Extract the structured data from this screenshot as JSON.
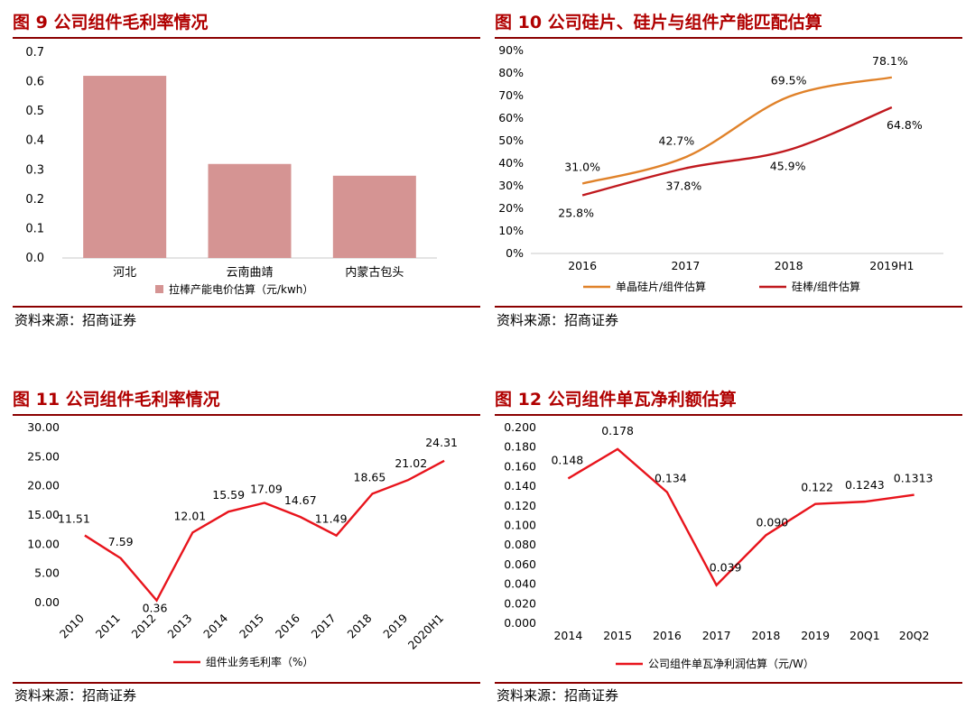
{
  "figures": [
    {
      "title": "图 9  公司组件毛利率情况",
      "source": "资料来源：招商证券",
      "chart_data": {
        "type": "bar",
        "categories": [
          "河北",
          "云南曲靖",
          "内蒙古包头"
        ],
        "series": [
          {
            "name": "拉棒产能电价估算（元/kwh）",
            "values": [
              0.62,
              0.32,
              0.28
            ],
            "color": "#d59493"
          }
        ],
        "ylim": [
          0,
          0.7
        ],
        "yticks": [
          "0.0",
          "0.1",
          "0.2",
          "0.3",
          "0.4",
          "0.5",
          "0.6",
          "0.7"
        ],
        "grid": false,
        "legend": "bottom"
      }
    },
    {
      "title": "图 10  公司硅片、硅片与组件产能匹配估算",
      "source": "资料来源：招商证券",
      "chart_data": {
        "type": "line",
        "categories": [
          "2016",
          "2017",
          "2018",
          "2019H1"
        ],
        "series": [
          {
            "name": "单晶硅片/组件估算",
            "values": [
              31.0,
              42.7,
              69.5,
              78.1
            ],
            "labels": [
              "31.0%",
              "42.7%",
              "69.5%",
              "78.1%"
            ],
            "color": "#e0822a"
          },
          {
            "name": "硅棒/组件估算",
            "values": [
              25.8,
              37.8,
              45.9,
              64.8
            ],
            "labels": [
              "25.8%",
              "37.8%",
              "45.9%",
              "64.8%"
            ],
            "color": "#c0191e"
          }
        ],
        "ylim": [
          0,
          90
        ],
        "yticks": [
          "0%",
          "10%",
          "20%",
          "30%",
          "40%",
          "50%",
          "60%",
          "70%",
          "80%",
          "90%"
        ],
        "grid": false,
        "legend": "bottom"
      }
    },
    {
      "title": "图 11  公司组件毛利率情况",
      "source": "资料来源：招商证券",
      "chart_data": {
        "type": "line",
        "categories": [
          "2010",
          "2011",
          "2012",
          "2013",
          "2014",
          "2015",
          "2016",
          "2017",
          "2018",
          "2019",
          "2020H1"
        ],
        "series": [
          {
            "name": "组件业务毛利率（%）",
            "values": [
              11.51,
              7.59,
              0.36,
              12.01,
              15.59,
              17.09,
              14.67,
              11.49,
              18.65,
              21.02,
              24.31
            ],
            "labels": [
              "11.51",
              "7.59",
              "0.36",
              "12.01",
              "15.59",
              "17.09",
              "14.67",
              "11.49",
              "18.65",
              "21.02",
              "24.31"
            ],
            "color": "#e8141c"
          }
        ],
        "ylim": [
          0,
          30
        ],
        "yticks": [
          "0.00",
          "5.00",
          "10.00",
          "15.00",
          "20.00",
          "25.00",
          "30.00"
        ],
        "grid": false,
        "legend": "bottom"
      }
    },
    {
      "title": "图 12  公司组件单瓦净利额估算",
      "source": "资料来源：招商证券",
      "chart_data": {
        "type": "line",
        "categories": [
          "2014",
          "2015",
          "2016",
          "2017",
          "2018",
          "2019",
          "20Q1",
          "20Q2"
        ],
        "series": [
          {
            "name": "公司组件单瓦净利润估算（元/W）",
            "values": [
              0.148,
              0.178,
              0.134,
              0.039,
              0.09,
              0.122,
              0.1243,
              0.1313
            ],
            "labels": [
              "0.148",
              "0.178",
              "0.134",
              "0.039",
              "0.090",
              "0.122",
              "0.1243",
              "0.1313"
            ],
            "color": "#e8141c"
          }
        ],
        "ylim": [
          0,
          0.2
        ],
        "yticks": [
          "0.000",
          "0.020",
          "0.040",
          "0.060",
          "0.080",
          "0.100",
          "0.120",
          "0.140",
          "0.160",
          "0.180",
          "0.200"
        ],
        "grid": false,
        "legend": "bottom"
      }
    }
  ]
}
